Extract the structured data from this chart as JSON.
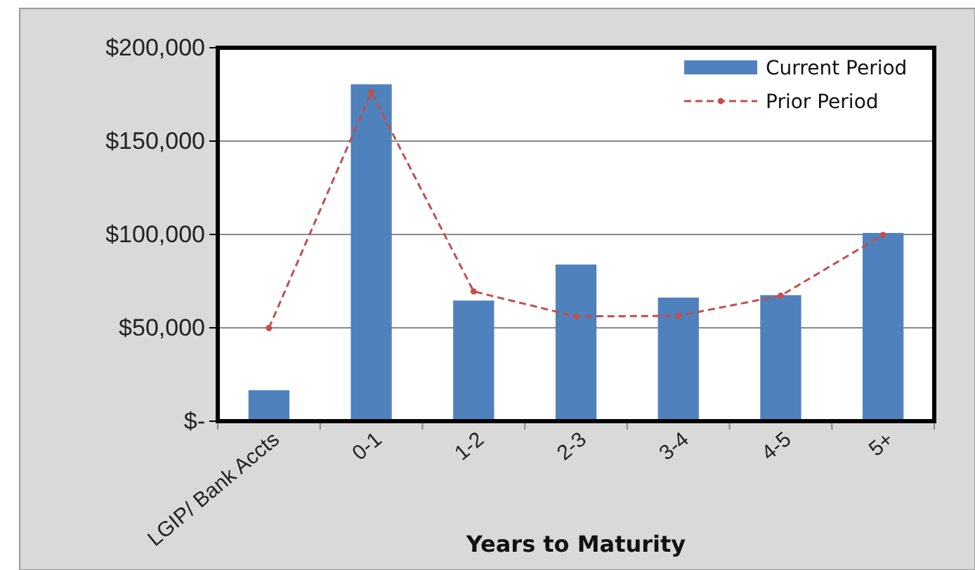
{
  "chart_data": {
    "type": "bar",
    "xlabel": "Years to Maturity",
    "categories": [
      "LGIP/ Bank Accts",
      "0-1",
      "1-2",
      "2-3",
      "3-4",
      "4-5",
      "5+"
    ],
    "series": [
      {
        "name": "Current Period",
        "type": "bar",
        "color": "#4f81bd",
        "values": [
          16600,
          180400,
          64600,
          83900,
          66200,
          67500,
          100800
        ]
      },
      {
        "name": "Prior Period",
        "type": "line",
        "color": "#c0504d",
        "line_style": "dashed",
        "marker": "circle",
        "values": [
          49900,
          176200,
          69500,
          56100,
          56400,
          67200,
          99800
        ]
      }
    ],
    "ylim": [
      0,
      200000
    ],
    "yticks": [
      {
        "value": 0,
        "label": "$-"
      },
      {
        "value": 50000,
        "label": "$50,000"
      },
      {
        "value": 100000,
        "label": "$100,000"
      },
      {
        "value": 150000,
        "label": "$150,000"
      },
      {
        "value": 200000,
        "label": "$200,000"
      }
    ],
    "grid": "y",
    "legend": "top right"
  }
}
